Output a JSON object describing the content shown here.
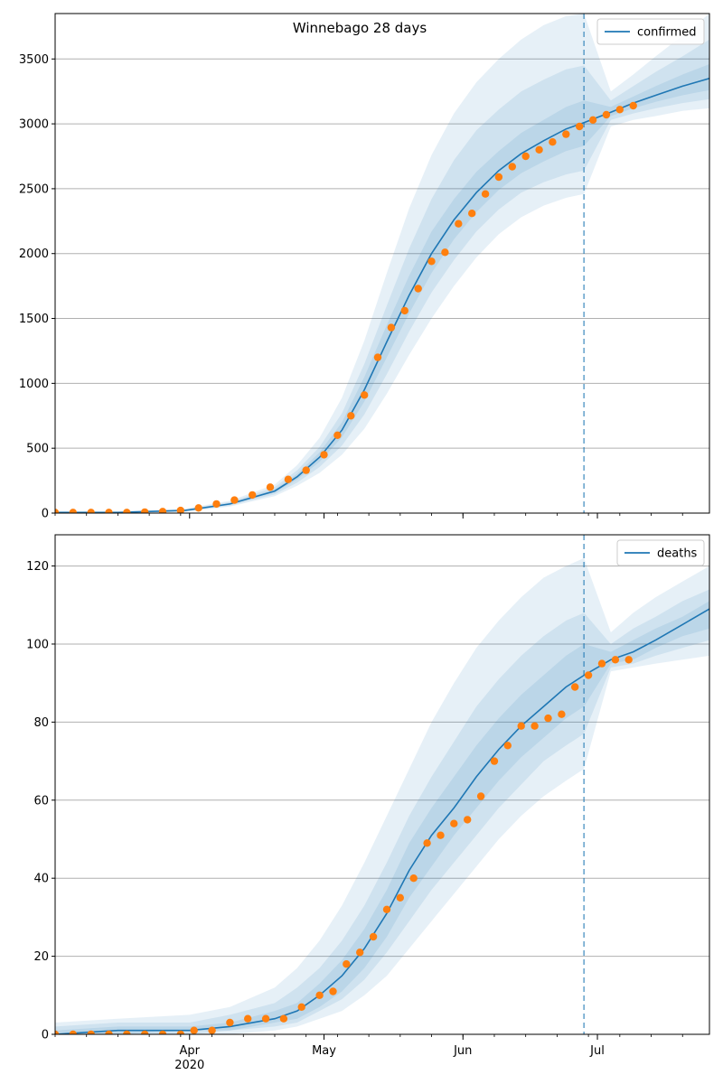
{
  "figure": {
    "title": "Winnebago 28 days"
  },
  "colors": {
    "model_line": "#1f77b4",
    "observed_points": "#ff7f0e",
    "band": "#1f77b4",
    "grid": "#b0b0b0",
    "forecast_marker": "#1f77b4"
  },
  "x_axis": {
    "start_date": "2020-03-02",
    "end_date": "2020-07-26",
    "month_ticks": [
      {
        "date": "2020-04-01",
        "label": "Apr",
        "sublabel": "2020"
      },
      {
        "date": "2020-05-01",
        "label": "May",
        "sublabel": ""
      },
      {
        "date": "2020-06-01",
        "label": "Jun",
        "sublabel": ""
      },
      {
        "date": "2020-07-01",
        "label": "Jul",
        "sublabel": ""
      }
    ],
    "forecast_start_date": "2020-06-28"
  },
  "chart_data": [
    {
      "type": "line",
      "legend": "confirmed",
      "legend_position": "top-right",
      "grid": "horizontal",
      "ylim": [
        0,
        3850
      ],
      "yticks": [
        0,
        500,
        1000,
        1500,
        2000,
        2500,
        3000,
        3500
      ],
      "model": {
        "x": [
          "2020-03-02",
          "2020-03-16",
          "2020-03-31",
          "2020-04-10",
          "2020-04-20",
          "2020-04-25",
          "2020-04-30",
          "2020-05-05",
          "2020-05-10",
          "2020-05-15",
          "2020-05-20",
          "2020-05-25",
          "2020-05-30",
          "2020-06-04",
          "2020-06-09",
          "2020-06-14",
          "2020-06-19",
          "2020-06-24",
          "2020-06-28",
          "2020-07-04",
          "2020-07-09",
          "2020-07-14",
          "2020-07-20",
          "2020-07-26"
        ],
        "y": [
          5,
          5,
          20,
          70,
          170,
          280,
          430,
          640,
          950,
          1320,
          1680,
          2000,
          2260,
          2470,
          2640,
          2770,
          2870,
          2960,
          3010,
          3090,
          3160,
          3220,
          3290,
          3350
        ]
      },
      "bands": [
        {
          "lower": [
            0,
            0,
            10,
            50,
            130,
            210,
            310,
            450,
            650,
            920,
            1220,
            1500,
            1750,
            1970,
            2150,
            2280,
            2370,
            2430,
            2460,
            2980,
            3030,
            3060,
            3100,
            3120
          ],
          "upper": [
            15,
            15,
            35,
            95,
            220,
            370,
            580,
            890,
            1330,
            1850,
            2350,
            2760,
            3080,
            3320,
            3500,
            3650,
            3760,
            3830,
            3850,
            3250,
            3380,
            3520,
            3680,
            3850
          ]
        },
        {
          "lower": [
            2,
            2,
            14,
            58,
            145,
            235,
            355,
            520,
            760,
            1070,
            1400,
            1700,
            1950,
            2170,
            2340,
            2470,
            2550,
            2610,
            2640,
            3030,
            3080,
            3120,
            3160,
            3190
          ],
          "upper": [
            10,
            10,
            28,
            85,
            200,
            330,
            510,
            770,
            1150,
            1600,
            2040,
            2420,
            2720,
            2950,
            3110,
            3250,
            3340,
            3420,
            3450,
            3180,
            3290,
            3400,
            3520,
            3650
          ]
        },
        {
          "lower": [
            3,
            3,
            17,
            64,
            158,
            258,
            395,
            585,
            860,
            1200,
            1540,
            1850,
            2110,
            2320,
            2490,
            2620,
            2710,
            2790,
            2830,
            3060,
            3120,
            3170,
            3220,
            3260
          ],
          "upper": [
            7,
            7,
            23,
            77,
            183,
            302,
            468,
            700,
            1050,
            1450,
            1830,
            2170,
            2420,
            2630,
            2790,
            2930,
            3030,
            3130,
            3180,
            3130,
            3210,
            3290,
            3380,
            3460
          ]
        }
      ],
      "observed": {
        "x": [
          "2020-03-02",
          "2020-03-06",
          "2020-03-10",
          "2020-03-14",
          "2020-03-18",
          "2020-03-22",
          "2020-03-26",
          "2020-03-30",
          "2020-04-03",
          "2020-04-07",
          "2020-04-11",
          "2020-04-15",
          "2020-04-19",
          "2020-04-23",
          "2020-04-27",
          "2020-05-01",
          "2020-05-04",
          "2020-05-07",
          "2020-05-10",
          "2020-05-13",
          "2020-05-16",
          "2020-05-19",
          "2020-05-22",
          "2020-05-25",
          "2020-05-28",
          "2020-05-31",
          "2020-06-03",
          "2020-06-06",
          "2020-06-09",
          "2020-06-12",
          "2020-06-15",
          "2020-06-18",
          "2020-06-21",
          "2020-06-24",
          "2020-06-27",
          "2020-06-30",
          "2020-07-03",
          "2020-07-06",
          "2020-07-09"
        ],
        "y": [
          5,
          5,
          5,
          5,
          5,
          8,
          12,
          20,
          40,
          70,
          100,
          140,
          200,
          260,
          330,
          450,
          600,
          750,
          910,
          1200,
          1430,
          1560,
          1730,
          1940,
          2010,
          2230,
          2310,
          2460,
          2590,
          2670,
          2750,
          2800,
          2860,
          2920,
          2980,
          3030,
          3070,
          3110,
          3140
        ]
      }
    },
    {
      "type": "line",
      "legend": "deaths",
      "legend_position": "top-right",
      "grid": "horizontal",
      "ylim": [
        0,
        128
      ],
      "yticks": [
        0,
        20,
        40,
        60,
        80,
        100,
        120
      ],
      "model": {
        "x": [
          "2020-03-02",
          "2020-03-16",
          "2020-04-01",
          "2020-04-10",
          "2020-04-20",
          "2020-04-25",
          "2020-04-30",
          "2020-05-05",
          "2020-05-10",
          "2020-05-15",
          "2020-05-20",
          "2020-05-25",
          "2020-05-30",
          "2020-06-04",
          "2020-06-09",
          "2020-06-14",
          "2020-06-19",
          "2020-06-24",
          "2020-06-28",
          "2020-07-04",
          "2020-07-09",
          "2020-07-14",
          "2020-07-20",
          "2020-07-26"
        ],
        "y": [
          0,
          1,
          1,
          2,
          4,
          6,
          10,
          15,
          22,
          31,
          42,
          51,
          58,
          66,
          73,
          79,
          84,
          89,
          92,
          96,
          98,
          101,
          105,
          109
        ]
      },
      "bands": [
        {
          "lower": [
            0,
            0,
            0,
            0,
            1,
            2,
            4,
            6,
            10,
            15,
            22,
            29,
            36,
            43,
            50,
            56,
            61,
            65,
            68,
            93,
            94,
            95,
            96,
            97
          ],
          "upper": [
            3,
            4,
            5,
            7,
            12,
            17,
            24,
            33,
            44,
            56,
            68,
            80,
            90,
            99,
            106,
            112,
            117,
            120,
            122,
            103,
            108,
            112,
            116,
            120
          ]
        },
        {
          "lower": [
            0,
            0,
            0,
            1,
            2,
            3,
            6,
            9,
            14,
            21,
            29,
            37,
            44,
            51,
            58,
            64,
            70,
            74,
            77,
            94,
            95,
            97,
            99,
            101
          ],
          "upper": [
            2,
            3,
            3,
            5,
            8,
            12,
            17,
            24,
            33,
            44,
            56,
            66,
            75,
            84,
            91,
            97,
            102,
            106,
            108,
            100,
            104,
            107,
            111,
            114
          ]
        },
        {
          "lower": [
            0,
            0,
            1,
            1,
            3,
            4,
            7,
            11,
            17,
            25,
            35,
            43,
            51,
            58,
            65,
            71,
            76,
            81,
            84,
            95,
            96,
            99,
            102,
            104
          ],
          "upper": [
            1,
            2,
            2,
            3,
            6,
            8,
            13,
            19,
            27,
            37,
            49,
            58,
            66,
            74,
            81,
            87,
            92,
            97,
            100,
            98,
            101,
            104,
            107,
            111
          ]
        }
      ],
      "observed": {
        "x": [
          "2020-03-02",
          "2020-03-06",
          "2020-03-10",
          "2020-03-14",
          "2020-03-18",
          "2020-03-22",
          "2020-03-26",
          "2020-03-30",
          "2020-04-02",
          "2020-04-06",
          "2020-04-10",
          "2020-04-14",
          "2020-04-18",
          "2020-04-22",
          "2020-04-26",
          "2020-04-30",
          "2020-05-03",
          "2020-05-06",
          "2020-05-09",
          "2020-05-12",
          "2020-05-15",
          "2020-05-18",
          "2020-05-21",
          "2020-05-24",
          "2020-05-27",
          "2020-05-30",
          "2020-06-02",
          "2020-06-05",
          "2020-06-08",
          "2020-06-11",
          "2020-06-14",
          "2020-06-17",
          "2020-06-20",
          "2020-06-23",
          "2020-06-26",
          "2020-06-29",
          "2020-07-02",
          "2020-07-05",
          "2020-07-08"
        ],
        "y": [
          0,
          0,
          0,
          0,
          0,
          0,
          0,
          0,
          1,
          1,
          3,
          4,
          4,
          4,
          7,
          10,
          11,
          18,
          21,
          25,
          32,
          35,
          40,
          49,
          51,
          54,
          55,
          61,
          70,
          74,
          79,
          79,
          81,
          82,
          89,
          92,
          95,
          96,
          96
        ]
      }
    }
  ]
}
